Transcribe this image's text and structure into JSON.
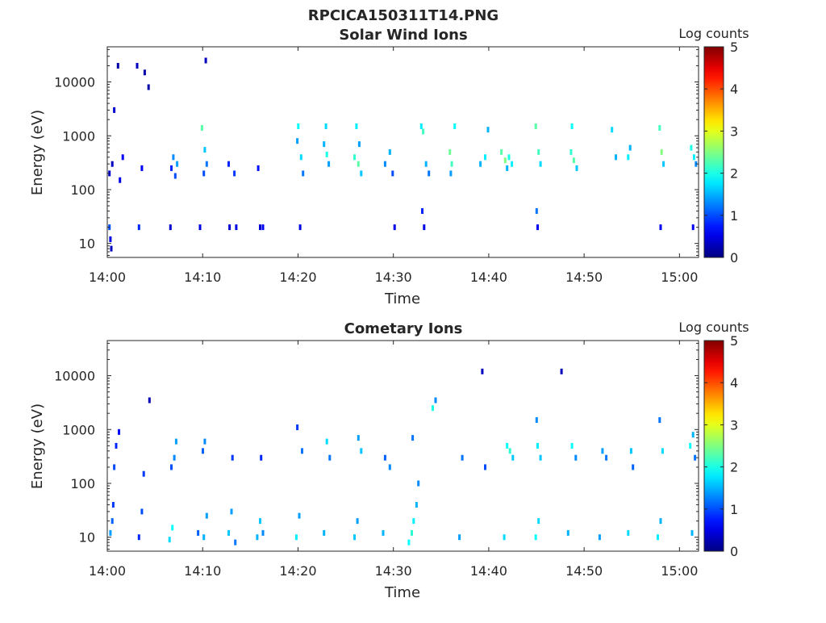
{
  "title": "RPCICA150311T14.PNG",
  "colorbar": {
    "label": "Log counts",
    "ticks": [
      "0",
      "1",
      "2",
      "3",
      "4",
      "5"
    ],
    "range": [
      0,
      5
    ],
    "colormap": "jet"
  },
  "chart_data": [
    {
      "type": "heatmap",
      "title": "Solar Wind Ions",
      "xlabel": "Time",
      "ylabel": "Energy (eV)",
      "x_ticks": [
        "14:00",
        "14:10",
        "14:20",
        "14:30",
        "14:40",
        "14:50",
        "15:00"
      ],
      "xlim_minutes": [
        0,
        62
      ],
      "y_ticks": [
        "10",
        "100",
        "1000",
        "10000"
      ],
      "y_tick_values": [
        10,
        100,
        1000,
        10000
      ],
      "y_scale": "log",
      "ylim": [
        5.5,
        45000
      ],
      "cells": [
        [
          0.1,
          20,
          1.0
        ],
        [
          0.2,
          12,
          0.5
        ],
        [
          0.3,
          8,
          0.3
        ],
        [
          0.1,
          200,
          0.4
        ],
        [
          0.4,
          300,
          0.3
        ],
        [
          0.6,
          3000,
          0.4
        ],
        [
          1.0,
          20000,
          0.2
        ],
        [
          1.2,
          150,
          0.5
        ],
        [
          1.5,
          400,
          0.6
        ],
        [
          3.2,
          20,
          0.8
        ],
        [
          3.5,
          250,
          0.6
        ],
        [
          3.0,
          20000,
          0.3
        ],
        [
          3.8,
          15000,
          0.2
        ],
        [
          4.2,
          8000,
          0.2
        ],
        [
          6.6,
          250,
          0.8
        ],
        [
          6.8,
          400,
          1.3
        ],
        [
          7.0,
          180,
          1.0
        ],
        [
          7.2,
          300,
          1.4
        ],
        [
          6.5,
          20,
          0.4
        ],
        [
          9.8,
          1400,
          2.3
        ],
        [
          10.1,
          550,
          1.6
        ],
        [
          10.3,
          300,
          1.2
        ],
        [
          10.0,
          200,
          1.0
        ],
        [
          10.2,
          25000,
          0.3
        ],
        [
          9.6,
          20,
          0.5
        ],
        [
          12.6,
          300,
          0.8
        ],
        [
          13.2,
          200,
          0.9
        ],
        [
          12.7,
          20,
          0.4
        ],
        [
          13.4,
          20,
          0.5
        ],
        [
          15.7,
          250,
          0.7
        ],
        [
          15.9,
          20,
          0.4
        ],
        [
          16.2,
          20,
          0.6
        ],
        [
          19.8,
          800,
          1.4
        ],
        [
          20.2,
          400,
          1.7
        ],
        [
          19.9,
          1500,
          1.9
        ],
        [
          20.4,
          200,
          1.2
        ],
        [
          20.1,
          20,
          0.5
        ],
        [
          22.6,
          700,
          1.5
        ],
        [
          22.9,
          450,
          2.0
        ],
        [
          23.1,
          300,
          1.4
        ],
        [
          22.8,
          1500,
          1.7
        ],
        [
          25.8,
          400,
          2.1
        ],
        [
          26.2,
          300,
          2.3
        ],
        [
          26.5,
          200,
          1.6
        ],
        [
          26.3,
          700,
          1.4
        ],
        [
          26.0,
          1500,
          1.8
        ],
        [
          29.0,
          300,
          1.3
        ],
        [
          29.5,
          500,
          1.5
        ],
        [
          29.8,
          200,
          1.0
        ],
        [
          30.0,
          20,
          0.5
        ],
        [
          32.8,
          1500,
          1.8
        ],
        [
          33.0,
          1200,
          2.2
        ],
        [
          33.3,
          300,
          1.5
        ],
        [
          33.6,
          200,
          1.2
        ],
        [
          32.9,
          40,
          0.8
        ],
        [
          33.1,
          20,
          0.5
        ],
        [
          35.8,
          500,
          2.4
        ],
        [
          36.0,
          300,
          2.2
        ],
        [
          36.3,
          1500,
          1.9
        ],
        [
          35.9,
          200,
          1.4
        ],
        [
          39.0,
          300,
          1.5
        ],
        [
          39.5,
          400,
          1.8
        ],
        [
          39.8,
          1300,
          1.5
        ],
        [
          41.2,
          500,
          2.3
        ],
        [
          41.6,
          350,
          2.5
        ],
        [
          42.0,
          400,
          2.0
        ],
        [
          42.3,
          300,
          1.8
        ],
        [
          41.8,
          250,
          1.5
        ],
        [
          44.8,
          1500,
          2.3
        ],
        [
          45.1,
          500,
          2.2
        ],
        [
          45.3,
          300,
          1.7
        ],
        [
          45.0,
          20,
          0.6
        ],
        [
          44.9,
          40,
          1.2
        ],
        [
          48.5,
          500,
          2.1
        ],
        [
          48.8,
          350,
          2.3
        ],
        [
          49.1,
          250,
          1.6
        ],
        [
          48.6,
          1500,
          1.9
        ],
        [
          52.8,
          1300,
          1.7
        ],
        [
          53.2,
          400,
          1.5
        ],
        [
          54.5,
          400,
          1.8
        ],
        [
          54.7,
          600,
          1.5
        ],
        [
          57.8,
          1400,
          2.2
        ],
        [
          58.0,
          500,
          2.5
        ],
        [
          58.2,
          300,
          1.6
        ],
        [
          57.9,
          20,
          0.6
        ],
        [
          61.1,
          600,
          2.0
        ],
        [
          61.4,
          400,
          1.8
        ],
        [
          61.6,
          300,
          1.3
        ],
        [
          61.3,
          20,
          0.6
        ]
      ]
    },
    {
      "type": "heatmap",
      "title": "Cometary Ions",
      "xlabel": "Time",
      "ylabel": "Energy (eV)",
      "x_ticks": [
        "14:00",
        "14:10",
        "14:20",
        "14:30",
        "14:40",
        "14:50",
        "15:00"
      ],
      "xlim_minutes": [
        0,
        62
      ],
      "y_ticks": [
        "10",
        "100",
        "1000",
        "10000"
      ],
      "y_tick_values": [
        10,
        100,
        1000,
        10000
      ],
      "y_scale": "log",
      "ylim": [
        5.5,
        45000
      ],
      "cells": [
        [
          0.2,
          12,
          1.4
        ],
        [
          0.4,
          20,
          1.1
        ],
        [
          0.5,
          40,
          0.9
        ],
        [
          0.6,
          200,
          1.0
        ],
        [
          0.8,
          500,
          0.8
        ],
        [
          1.1,
          900,
          0.6
        ],
        [
          3.2,
          10,
          0.8
        ],
        [
          3.5,
          30,
          1.0
        ],
        [
          3.7,
          150,
          0.9
        ],
        [
          4.3,
          3500,
          0.3
        ],
        [
          6.4,
          9,
          1.7
        ],
        [
          6.7,
          15,
          1.9
        ],
        [
          6.9,
          300,
          1.3
        ],
        [
          7.1,
          600,
          1.4
        ],
        [
          6.6,
          200,
          1.0
        ],
        [
          9.4,
          12,
          1.1
        ],
        [
          10.0,
          10,
          1.5
        ],
        [
          10.3,
          25,
          1.4
        ],
        [
          9.9,
          400,
          1.1
        ],
        [
          10.1,
          600,
          1.3
        ],
        [
          12.6,
          12,
          1.6
        ],
        [
          12.9,
          30,
          1.4
        ],
        [
          13.3,
          8,
          1.2
        ],
        [
          13.0,
          300,
          0.9
        ],
        [
          15.6,
          10,
          1.5
        ],
        [
          15.9,
          20,
          1.6
        ],
        [
          16.2,
          12,
          1.3
        ],
        [
          16.0,
          300,
          0.8
        ],
        [
          19.7,
          10,
          1.8
        ],
        [
          20.0,
          25,
          1.4
        ],
        [
          20.3,
          400,
          1.2
        ],
        [
          19.8,
          1100,
          0.9
        ],
        [
          22.6,
          12,
          1.5
        ],
        [
          22.9,
          600,
          1.7
        ],
        [
          23.2,
          300,
          1.2
        ],
        [
          25.8,
          10,
          1.6
        ],
        [
          26.1,
          20,
          1.4
        ],
        [
          26.5,
          400,
          1.6
        ],
        [
          26.2,
          700,
          1.4
        ],
        [
          28.8,
          12,
          1.5
        ],
        [
          29.0,
          300,
          1.1
        ],
        [
          29.5,
          200,
          1.3
        ],
        [
          31.5,
          8,
          1.9
        ],
        [
          31.8,
          12,
          2.1
        ],
        [
          32.0,
          20,
          1.8
        ],
        [
          32.3,
          40,
          1.5
        ],
        [
          32.5,
          100,
          1.3
        ],
        [
          31.9,
          700,
          1.2
        ],
        [
          34.0,
          2500,
          2.0
        ],
        [
          34.3,
          3500,
          1.3
        ],
        [
          36.8,
          10,
          1.4
        ],
        [
          37.1,
          300,
          1.2
        ],
        [
          39.2,
          12000,
          0.3
        ],
        [
          39.5,
          200,
          1.0
        ],
        [
          41.5,
          10,
          1.7
        ],
        [
          41.8,
          500,
          1.9
        ],
        [
          42.1,
          400,
          2.1
        ],
        [
          42.4,
          300,
          1.6
        ],
        [
          44.8,
          10,
          1.9
        ],
        [
          45.1,
          20,
          1.7
        ],
        [
          45.0,
          500,
          1.8
        ],
        [
          45.3,
          300,
          1.6
        ],
        [
          44.9,
          1500,
          1.3
        ],
        [
          48.2,
          12,
          1.5
        ],
        [
          48.6,
          500,
          1.9
        ],
        [
          49.0,
          300,
          1.3
        ],
        [
          47.5,
          12000,
          0.3
        ],
        [
          51.5,
          10,
          1.4
        ],
        [
          51.8,
          400,
          1.4
        ],
        [
          52.2,
          300,
          1.2
        ],
        [
          54.5,
          12,
          1.7
        ],
        [
          54.8,
          400,
          1.6
        ],
        [
          55.0,
          200,
          1.1
        ],
        [
          57.6,
          10,
          1.8
        ],
        [
          57.9,
          20,
          1.5
        ],
        [
          58.1,
          400,
          1.7
        ],
        [
          57.8,
          1500,
          1.2
        ],
        [
          61.0,
          500,
          1.9
        ],
        [
          61.3,
          800,
          1.5
        ],
        [
          61.5,
          300,
          1.2
        ],
        [
          61.2,
          12,
          1.5
        ]
      ]
    }
  ]
}
